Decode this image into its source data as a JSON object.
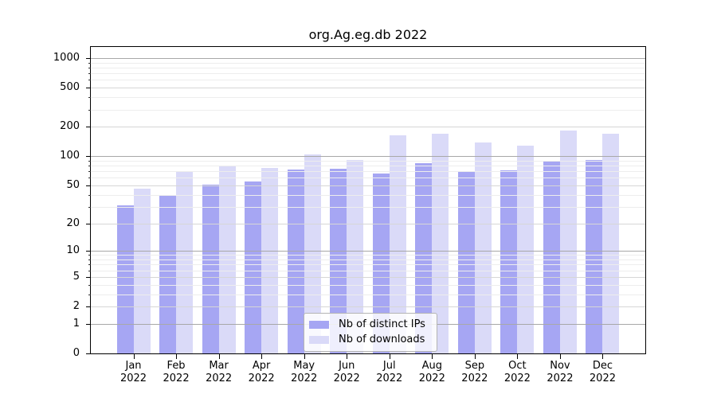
{
  "chart_data": {
    "type": "bar",
    "title": "org.Ag.eg.db 2022",
    "x_categories": [
      "Jan",
      "Feb",
      "Mar",
      "Apr",
      "May",
      "Jun",
      "Jul",
      "Aug",
      "Sep",
      "Oct",
      "Nov",
      "Dec"
    ],
    "x_year": "2022",
    "series": [
      {
        "name": "Nb of distinct IPs",
        "color": "#a6a6f3",
        "values": [
          31,
          40,
          51,
          55,
          73,
          74,
          66,
          84,
          70,
          71,
          90,
          92
        ]
      },
      {
        "name": "Nb of downloads",
        "color": "#dadaf8",
        "values": [
          46,
          70,
          78,
          75,
          105,
          92,
          163,
          170,
          138,
          128,
          183,
          171
        ]
      }
    ],
    "y_axis": {
      "scale": "log1p",
      "ticks": [
        0,
        1,
        2,
        5,
        10,
        20,
        50,
        100,
        200,
        500,
        1000
      ],
      "range": [
        0,
        1280
      ]
    },
    "grid": {
      "on": true,
      "major_values": [
        1,
        10,
        100,
        1000
      ],
      "mid_values": [
        2,
        5,
        20,
        50,
        200,
        500
      ],
      "minor_values": [
        3,
        4,
        6,
        7,
        8,
        9,
        30,
        40,
        60,
        70,
        80,
        90,
        300,
        400,
        600,
        700,
        800,
        900
      ],
      "major_color": "#a8a8a8",
      "mid_color": "#d6d6d6",
      "minor_color": "#ededed"
    },
    "legend": {
      "position": "lower center"
    }
  }
}
